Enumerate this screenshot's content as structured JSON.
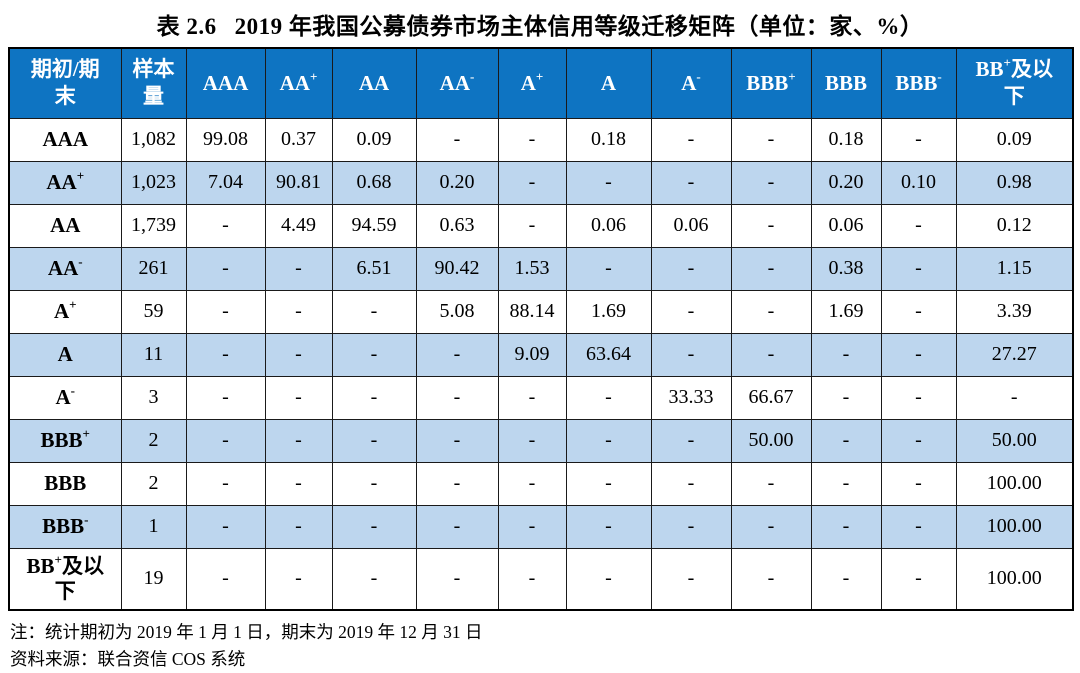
{
  "page": {
    "title_label": "表 2.6",
    "title_text": "2019 年我国公募债券市场主体信用等级迁移矩阵（单位：家、%）"
  },
  "table": {
    "header": {
      "corner": "期初/期末",
      "sample": "样本量",
      "ratings": [
        "AAA",
        "AA+",
        "AA",
        "AA-",
        "A+",
        "A",
        "A-",
        "BBB+",
        "BBB",
        "BBB-",
        "BB+及以下"
      ]
    },
    "rows": [
      {
        "label": "AAA",
        "sample": "1,082",
        "values": [
          "99.08",
          "0.37",
          "0.09",
          "-",
          "-",
          "0.18",
          "-",
          "-",
          "0.18",
          "-",
          "0.09"
        ]
      },
      {
        "label": "AA+",
        "sample": "1,023",
        "values": [
          "7.04",
          "90.81",
          "0.68",
          "0.20",
          "-",
          "-",
          "-",
          "-",
          "0.20",
          "0.10",
          "0.98"
        ]
      },
      {
        "label": "AA",
        "sample": "1,739",
        "values": [
          "-",
          "4.49",
          "94.59",
          "0.63",
          "-",
          "0.06",
          "0.06",
          "-",
          "0.06",
          "-",
          "0.12"
        ]
      },
      {
        "label": "AA-",
        "sample": "261",
        "values": [
          "-",
          "-",
          "6.51",
          "90.42",
          "1.53",
          "-",
          "-",
          "-",
          "0.38",
          "-",
          "1.15"
        ]
      },
      {
        "label": "A+",
        "sample": "59",
        "values": [
          "-",
          "-",
          "-",
          "5.08",
          "88.14",
          "1.69",
          "-",
          "-",
          "1.69",
          "-",
          "3.39"
        ]
      },
      {
        "label": "A",
        "sample": "11",
        "values": [
          "-",
          "-",
          "-",
          "-",
          "9.09",
          "63.64",
          "-",
          "-",
          "-",
          "-",
          "27.27"
        ]
      },
      {
        "label": "A-",
        "sample": "3",
        "values": [
          "-",
          "-",
          "-",
          "-",
          "-",
          "-",
          "33.33",
          "66.67",
          "-",
          "-",
          "-"
        ]
      },
      {
        "label": "BBB+",
        "sample": "2",
        "values": [
          "-",
          "-",
          "-",
          "-",
          "-",
          "-",
          "-",
          "50.00",
          "-",
          "-",
          "50.00"
        ]
      },
      {
        "label": "BBB",
        "sample": "2",
        "values": [
          "-",
          "-",
          "-",
          "-",
          "-",
          "-",
          "-",
          "-",
          "-",
          "-",
          "100.00"
        ]
      },
      {
        "label": "BBB-",
        "sample": "1",
        "values": [
          "-",
          "-",
          "-",
          "-",
          "-",
          "-",
          "-",
          "-",
          "-",
          "-",
          "100.00"
        ]
      },
      {
        "label": "BB+及以下",
        "sample": "19",
        "values": [
          "-",
          "-",
          "-",
          "-",
          "-",
          "-",
          "-",
          "-",
          "-",
          "-",
          "100.00"
        ]
      }
    ]
  },
  "notes": [
    "注：统计期初为 2019 年 1 月 1 日，期末为 2019 年 12 月 31 日",
    "资料来源：联合资信 COS 系统"
  ],
  "colors": {
    "header_bg": "#0E74C2",
    "alt_row_bg": "#BDD6EE",
    "header_text": "#FFFFFF",
    "border": "#000000"
  }
}
